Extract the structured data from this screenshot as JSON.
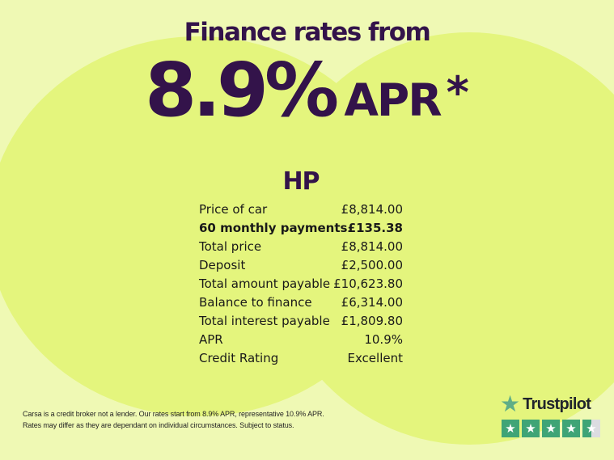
{
  "header": {
    "title": "Finance rates from",
    "rate": "8.9%",
    "unit": "APR",
    "asterisk": "*"
  },
  "finance": {
    "product_title": "HP",
    "rows": [
      {
        "label": "Price of car",
        "value": "£8,814.00",
        "bold": false
      },
      {
        "label": "60 monthly payments",
        "value": "£135.38",
        "bold": true
      },
      {
        "label": "Total price",
        "value": "£8,814.00",
        "bold": false
      },
      {
        "label": "Deposit",
        "value": "£2,500.00",
        "bold": false
      },
      {
        "label": "Total amount payable",
        "value": "£10,623.80",
        "bold": false
      },
      {
        "label": "Balance to finance",
        "value": "£6,314.00",
        "bold": false
      },
      {
        "label": "Total interest payable",
        "value": "£1,809.80",
        "bold": false
      },
      {
        "label": "APR",
        "value": "10.9%",
        "bold": false
      },
      {
        "label": "Credit Rating",
        "value": "Excellent",
        "bold": false
      }
    ]
  },
  "disclaimer": {
    "line1": "Carsa is a credit broker not a lender. Our rates start from 8.9% APR, representative 10.9% APR.",
    "line2": "Rates may differ as they are dependant on individual circumstances. Subject to status."
  },
  "trustpilot": {
    "brand": "Trustpilot",
    "rating": 4.5,
    "stars_total": 5,
    "star_glyph": "★"
  },
  "colors": {
    "background": "#eff9b4",
    "blob": "#e4f57d",
    "accent_purple": "#33134a",
    "text_dark": "#191919",
    "trustpilot_green": "#3fa476",
    "star_inactive": "#dcdce1"
  }
}
